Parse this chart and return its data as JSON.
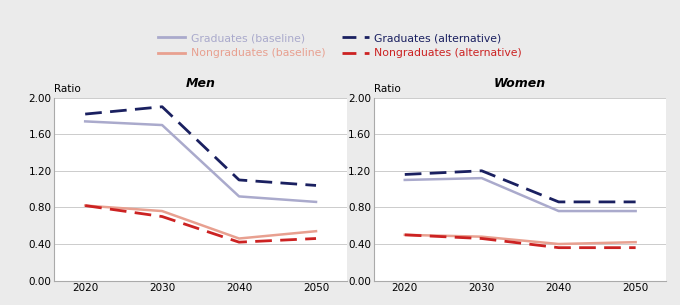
{
  "years": [
    2020,
    2030,
    2040,
    2050
  ],
  "men": {
    "grad_baseline": [
      1.74,
      1.7,
      0.92,
      0.86
    ],
    "grad_alt": [
      1.82,
      1.9,
      1.1,
      1.04
    ],
    "nongrad_baseline": [
      0.82,
      0.76,
      0.46,
      0.54
    ],
    "nongrad_alt": [
      0.82,
      0.7,
      0.42,
      0.46
    ]
  },
  "women": {
    "grad_baseline": [
      1.1,
      1.12,
      0.76,
      0.76
    ],
    "grad_alt": [
      1.16,
      1.2,
      0.86,
      0.86
    ],
    "nongrad_baseline": [
      0.5,
      0.48,
      0.4,
      0.42
    ],
    "nongrad_alt": [
      0.5,
      0.46,
      0.36,
      0.36
    ]
  },
  "colors": {
    "grad_baseline": "#aaaacc",
    "grad_alt": "#1a2060",
    "nongrad_baseline": "#e8a090",
    "nongrad_alt": "#cc2222"
  },
  "ylim": [
    0.0,
    2.0
  ],
  "yticks": [
    0.0,
    0.4,
    0.8,
    1.2,
    1.6,
    2.0
  ],
  "xticks": [
    2020,
    2030,
    2040,
    2050
  ],
  "ylabel": "Ratio",
  "titles": [
    "Men",
    "Women"
  ],
  "legend_labels": [
    "Graduates (baseline)",
    "Nongraduates (baseline)",
    "Graduates (alternative)",
    "Nongraduates (alternative)"
  ],
  "bg_color": "#ebebeb",
  "plot_bg": "#ffffff",
  "title_bg": "#e0e0e0"
}
